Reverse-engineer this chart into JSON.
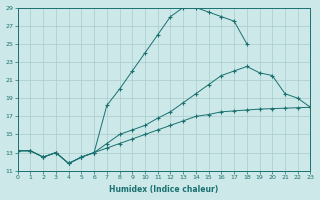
{
  "background_color": "#cce8e8",
  "grid_color": "#aacccc",
  "line_color": "#1a7070",
  "xlabel": "Humidex (Indice chaleur)",
  "xlim": [
    0,
    23
  ],
  "ylim": [
    11,
    29
  ],
  "xticks": [
    0,
    1,
    2,
    3,
    4,
    5,
    6,
    7,
    8,
    9,
    10,
    11,
    12,
    13,
    14,
    15,
    16,
    17,
    18,
    19,
    20,
    21,
    22,
    23
  ],
  "yticks": [
    11,
    13,
    15,
    17,
    19,
    21,
    23,
    25,
    27,
    29
  ],
  "curve1_x": [
    0,
    1,
    2,
    3,
    4,
    5,
    6,
    7,
    8,
    9,
    10,
    11,
    12,
    13,
    14,
    15,
    16,
    17,
    18
  ],
  "curve1_y": [
    13.2,
    13.2,
    12.5,
    13.0,
    11.8,
    12.5,
    13.0,
    18.2,
    20.0,
    22.0,
    24.0,
    26.0,
    28.0,
    29.0,
    29.0,
    28.5,
    28.0,
    27.5,
    25.0
  ],
  "curve2_x": [
    0,
    1,
    2,
    3,
    4,
    5,
    6,
    7,
    8,
    9,
    10,
    11,
    12,
    13,
    14,
    15,
    16,
    17,
    18,
    19,
    20,
    21,
    22,
    23
  ],
  "curve2_y": [
    13.2,
    13.2,
    12.5,
    13.0,
    11.8,
    12.5,
    13.0,
    13.5,
    14.0,
    14.5,
    15.0,
    15.5,
    16.0,
    16.5,
    17.0,
    17.2,
    17.5,
    17.6,
    17.7,
    17.8,
    17.85,
    17.9,
    17.95,
    18.0
  ],
  "curve3_x": [
    0,
    1,
    2,
    3,
    4,
    5,
    6,
    7,
    8,
    9,
    10,
    11,
    12,
    13,
    14,
    15,
    16,
    17,
    18,
    19,
    20,
    21,
    22,
    23
  ],
  "curve3_y": [
    13.2,
    13.2,
    12.5,
    13.0,
    11.8,
    12.5,
    13.0,
    14.0,
    15.0,
    15.5,
    16.0,
    16.8,
    17.5,
    18.5,
    19.5,
    20.5,
    21.5,
    22.0,
    22.5,
    21.8,
    21.5,
    19.5,
    19.0,
    18.0
  ]
}
